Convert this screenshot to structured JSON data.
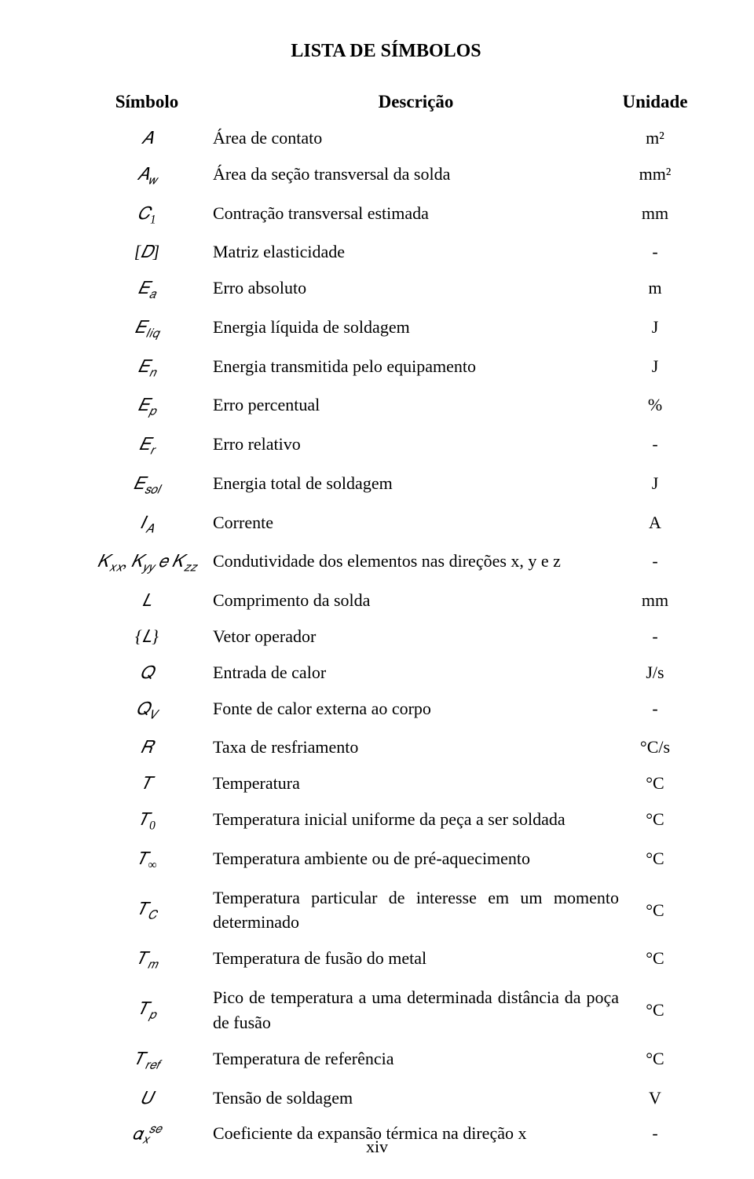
{
  "title": "LISTA DE SÍMBOLOS",
  "headers": {
    "symbol": "Símbolo",
    "description": "Descrição",
    "unit": "Unidade"
  },
  "rows": [
    {
      "symbol": "𝐴",
      "description": "Área de contato",
      "unit": "m²"
    },
    {
      "symbol": "𝐴<sub class='sub'>𝑤</sub>",
      "description": "Área da seção transversal da solda",
      "unit": "mm²"
    },
    {
      "symbol": "𝐶<sub class='sub'>1</sub>",
      "description": "Contração transversal estimada",
      "unit": "mm"
    },
    {
      "symbol": "[𝐷]",
      "description": "Matriz elasticidade",
      "unit": "-"
    },
    {
      "symbol": "𝐸<sub class='sub'>𝑎</sub>",
      "description": "Erro absoluto",
      "unit": "m"
    },
    {
      "symbol": "𝐸<sub class='sub'>𝑙𝑖𝑞</sub>",
      "description": "Energia líquida de soldagem",
      "unit": "J"
    },
    {
      "symbol": "𝐸<sub class='sub'>𝑛</sub>",
      "description": "Energia transmitida pelo equipamento",
      "unit": "J"
    },
    {
      "symbol": "𝐸<sub class='sub'>𝑝</sub>",
      "description": "Erro percentual",
      "unit": "%"
    },
    {
      "symbol": "𝐸<sub class='sub'>𝑟</sub>",
      "description": "Erro relativo",
      "unit": "-"
    },
    {
      "symbol": "𝐸<sub class='sub'>𝑠𝑜𝑙</sub>",
      "description": "Energia total de soldagem",
      "unit": "J"
    },
    {
      "symbol": "𝐼<sub class='sub'>𝐴</sub>",
      "description": "Corrente",
      "unit": "A"
    },
    {
      "symbol": "𝐾<sub class='sub'>𝑥𝑥</sub>, 𝐾<sub class='sub'>𝑦𝑦</sub> 𝑒 𝐾<sub class='sub'>𝑧𝑧</sub>",
      "description": "Condutividade dos elementos nas direções x, y e z",
      "unit": "-"
    },
    {
      "symbol": "𝐿",
      "description": "Comprimento da solda",
      "unit": "mm"
    },
    {
      "symbol": "{𝐿}",
      "description": "Vetor operador",
      "unit": "-"
    },
    {
      "symbol": "𝑄",
      "description": "Entrada de calor",
      "unit": "J/s"
    },
    {
      "symbol": "𝑄<sub class='sub'>𝑉</sub>",
      "description": "Fonte de calor externa ao corpo",
      "unit": "-"
    },
    {
      "symbol": "𝑅",
      "description": "Taxa de resfriamento",
      "unit": "°C/s"
    },
    {
      "symbol": "𝑇",
      "description": "Temperatura",
      "unit": "°C"
    },
    {
      "symbol": "𝑇<sub class='sub'>0</sub>",
      "description": "Temperatura inicial uniforme da peça a ser soldada",
      "unit": "°C"
    },
    {
      "symbol": "𝑇<sub class='sub'>∞</sub>",
      "description": "Temperatura ambiente ou de pré-aquecimento",
      "unit": "°C"
    },
    {
      "symbol": "𝑇<sub class='sub'>𝐶</sub>",
      "description": "Temperatura particular de interesse em um momento determinado",
      "unit": "°C",
      "multi": true
    },
    {
      "symbol": "𝑇<sub class='sub'>𝑚</sub>",
      "description": "Temperatura de fusão do metal",
      "unit": "°C"
    },
    {
      "symbol": "𝑇<sub class='sub'>𝑝</sub>",
      "description": "Pico de temperatura a uma determinada distância da poça de fusão",
      "unit": "°C",
      "multi": true
    },
    {
      "symbol": "𝑇<sub class='sub'>𝑟𝑒𝑓</sub>",
      "description": "Temperatura de referência",
      "unit": "°C"
    },
    {
      "symbol": "𝑈",
      "description": "Tensão de soldagem",
      "unit": "V"
    },
    {
      "symbol": "𝛼<sub class='sub'>𝑥</sub><sup class='sup'>𝑠𝑒</sup>",
      "description": "Coeficiente da expansão térmica na direção x",
      "unit": "-"
    }
  ],
  "page_number": "xiv",
  "colors": {
    "text": "#000000",
    "background": "#ffffff"
  },
  "fonts": {
    "body": "Times New Roman",
    "math": "Cambria Math"
  }
}
